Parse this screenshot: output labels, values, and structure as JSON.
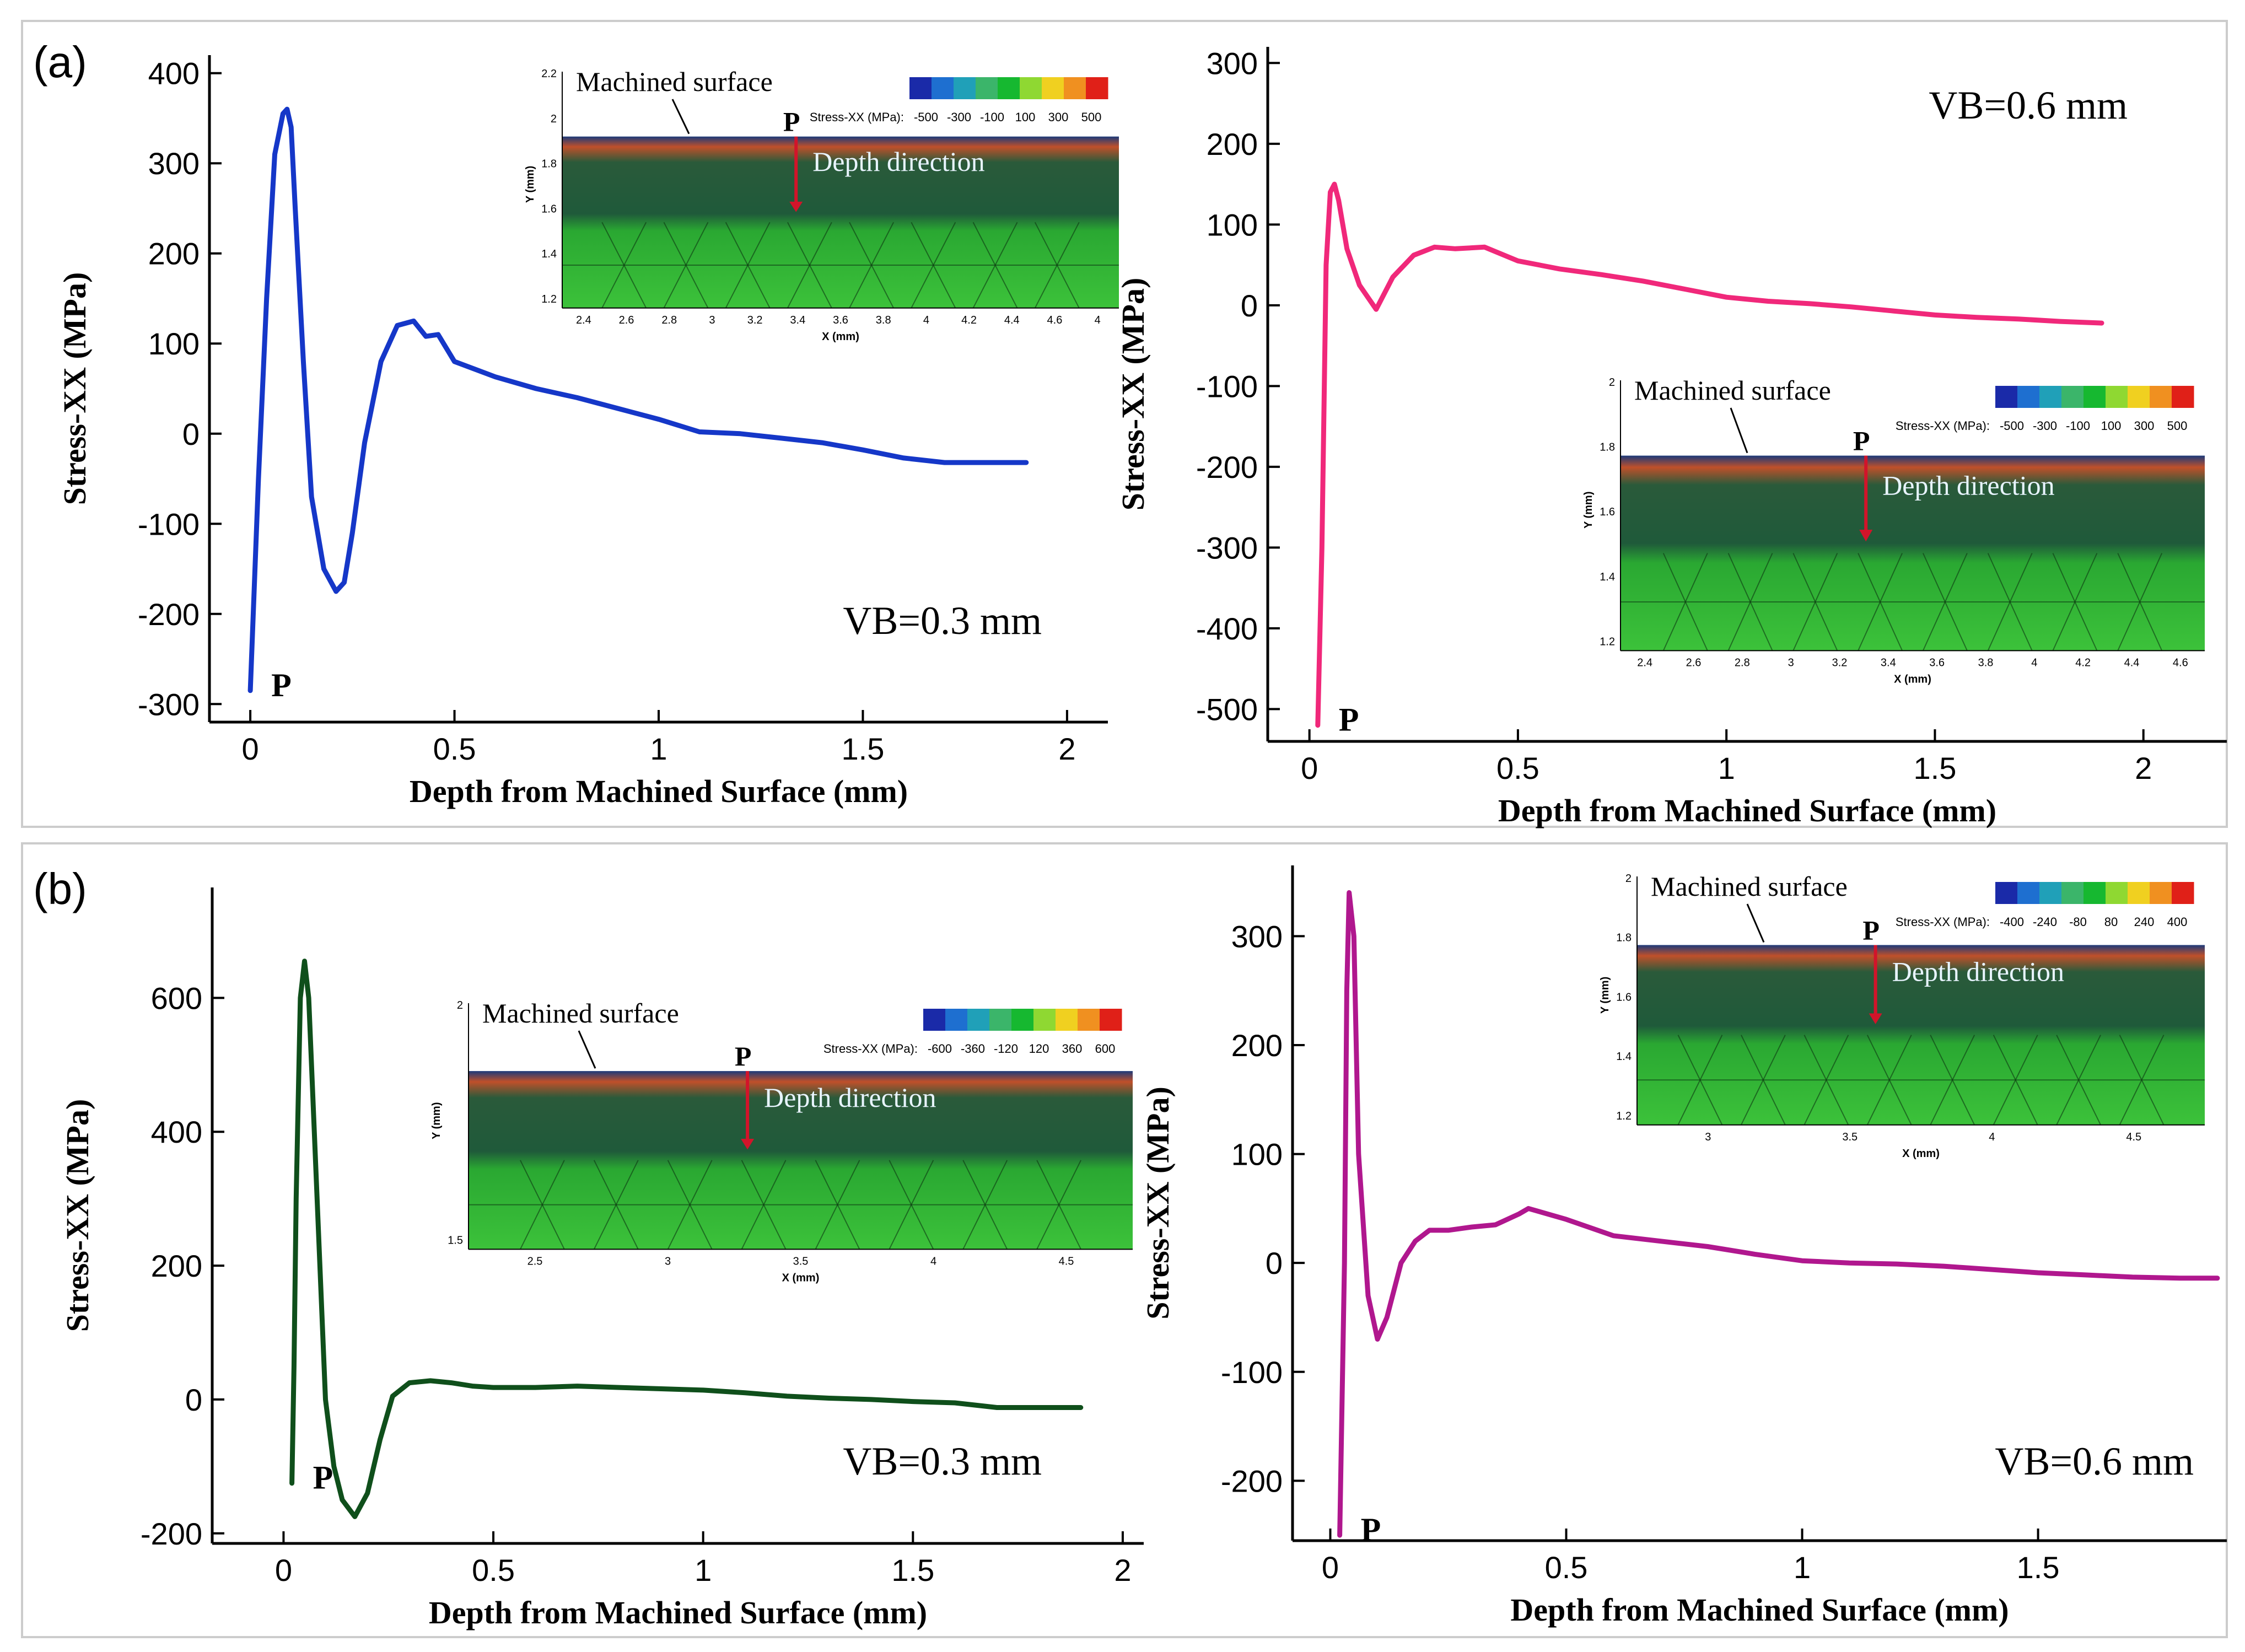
{
  "panels": [
    {
      "id": "a",
      "label": "(a)"
    },
    {
      "id": "b",
      "label": "(b)"
    }
  ],
  "chart_data": [
    {
      "type": "line",
      "panel": "a",
      "xlabel": "Depth from Machined Surface (mm)",
      "ylabel": "Stress-XX (MPa)",
      "xlim": [
        -0.1,
        2.1
      ],
      "ylim": [
        -320,
        420
      ],
      "xticks": [
        0,
        0.5,
        1,
        1.5,
        2
      ],
      "yticks": [
        -300,
        -200,
        -100,
        0,
        100,
        200,
        300,
        400
      ],
      "annotation": "VB=0.3 mm",
      "point_label": "P",
      "color": "#1537c8",
      "series": [
        {
          "x": [
            0,
            0.02,
            0.04,
            0.06,
            0.08,
            0.09,
            0.1,
            0.11,
            0.13,
            0.15,
            0.18,
            0.21,
            0.23,
            0.25,
            0.28,
            0.32,
            0.36,
            0.4,
            0.43,
            0.46,
            0.48,
            0.5,
            0.6,
            0.7,
            0.8,
            0.9,
            1.0,
            1.1,
            1.2,
            1.3,
            1.4,
            1.5,
            1.6,
            1.7,
            1.8,
            1.9
          ],
          "y": [
            -285,
            -50,
            150,
            310,
            355,
            360,
            340,
            250,
            80,
            -70,
            -150,
            -175,
            -165,
            -110,
            -10,
            80,
            120,
            125,
            108,
            110,
            95,
            80,
            63,
            50,
            40,
            28,
            16,
            2,
            0,
            -5,
            -10,
            -18,
            -27,
            -32,
            -32,
            -32
          ]
        }
      ],
      "inset": {
        "title": "Machined surface",
        "point_label": "P",
        "depth_label": "Depth direction",
        "legend_title": "Stress-XX (MPa):",
        "legend_ticks": [
          "-500",
          "-300",
          "-100",
          "100",
          "300",
          "500"
        ],
        "xlabel": "X (mm)",
        "ylabel": "Y (mm)",
        "xticks": [
          "2.4",
          "2.6",
          "2.8",
          "3",
          "3.2",
          "3.4",
          "3.6",
          "3.8",
          "4",
          "4.2",
          "4.4",
          "4.6",
          "4"
        ],
        "yticks": [
          "2.2",
          "2",
          "1.8",
          "1.6",
          "1.4",
          "1.2"
        ]
      }
    },
    {
      "type": "line",
      "panel": "a",
      "xlabel": "Depth from Machined Surface (mm)",
      "ylabel": "Stress-XX (MPa)",
      "xlim": [
        -0.1,
        2.2
      ],
      "ylim": [
        -540,
        320
      ],
      "xticks": [
        0,
        0.5,
        1,
        1.5,
        2
      ],
      "yticks": [
        -500,
        -400,
        -300,
        -200,
        -100,
        0,
        100,
        200,
        300
      ],
      "annotation": "VB=0.6 mm",
      "point_label": "P",
      "color": "#f0287a",
      "series": [
        {
          "x": [
            0.02,
            0.03,
            0.04,
            0.05,
            0.06,
            0.07,
            0.09,
            0.12,
            0.16,
            0.2,
            0.25,
            0.3,
            0.35,
            0.42,
            0.5,
            0.6,
            0.7,
            0.8,
            0.9,
            1.0,
            1.1,
            1.2,
            1.3,
            1.4,
            1.5,
            1.6,
            1.7,
            1.8,
            1.9
          ],
          "y": [
            -520,
            -300,
            50,
            140,
            150,
            130,
            70,
            25,
            -5,
            35,
            62,
            72,
            70,
            72,
            55,
            45,
            38,
            30,
            20,
            10,
            5,
            2,
            -2,
            -7,
            -12,
            -15,
            -17,
            -20,
            -22
          ]
        }
      ],
      "inset": {
        "title": "Machined surface",
        "point_label": "P",
        "depth_label": "Depth direction",
        "legend_title": "Stress-XX (MPa):",
        "legend_ticks": [
          "-500",
          "-300",
          "-100",
          "100",
          "300",
          "500"
        ],
        "xlabel": "X (mm)",
        "ylabel": "Y (mm)",
        "xticks": [
          "2.4",
          "2.6",
          "2.8",
          "3",
          "3.2",
          "3.4",
          "3.6",
          "3.8",
          "4",
          "4.2",
          "4.4",
          "4.6"
        ],
        "yticks": [
          "2",
          "1.8",
          "1.6",
          "1.4",
          "1.2"
        ]
      }
    },
    {
      "type": "line",
      "panel": "b",
      "xlabel": "Depth from Machined Surface (mm)",
      "ylabel": "Stress-XX (MPa)",
      "xlim": [
        -0.17,
        2.05
      ],
      "ylim": [
        -215,
        765
      ],
      "xticks": [
        0,
        0.5,
        1,
        1.5,
        2
      ],
      "yticks": [
        -200,
        0,
        200,
        400,
        600
      ],
      "annotation": "VB=0.3 mm",
      "point_label": "P",
      "color": "#0f4f1b",
      "series": [
        {
          "x": [
            0.02,
            0.025,
            0.03,
            0.04,
            0.05,
            0.06,
            0.08,
            0.1,
            0.12,
            0.14,
            0.17,
            0.2,
            0.23,
            0.26,
            0.3,
            0.35,
            0.4,
            0.45,
            0.5,
            0.6,
            0.7,
            0.8,
            0.9,
            1.0,
            1.1,
            1.2,
            1.3,
            1.4,
            1.5,
            1.6,
            1.7,
            1.8,
            1.9
          ],
          "y": [
            -125,
            50,
            300,
            600,
            655,
            600,
            300,
            0,
            -100,
            -150,
            -175,
            -140,
            -60,
            5,
            25,
            28,
            25,
            20,
            18,
            18,
            20,
            18,
            16,
            14,
            10,
            5,
            2,
            0,
            -3,
            -5,
            -12,
            -12,
            -12
          ]
        }
      ],
      "inset": {
        "title": "Machined surface",
        "point_label": "P",
        "depth_label": "Depth direction",
        "legend_title": "Stress-XX (MPa):",
        "legend_ticks": [
          "-600",
          "-360",
          "-120",
          "120",
          "360",
          "600"
        ],
        "xlabel": "X (mm)",
        "ylabel": "Y (mm)",
        "xticks": [
          "2.5",
          "3",
          "3.5",
          "4",
          "4.5"
        ],
        "yticks": [
          "2",
          "1.5"
        ]
      }
    },
    {
      "type": "line",
      "panel": "b",
      "xlabel": "Depth from Machined Surface (mm)",
      "ylabel": "Stress-XX (MPa)",
      "xlim": [
        -0.08,
        1.9
      ],
      "ylim": [
        -255,
        365
      ],
      "xticks": [
        0,
        0.5,
        1,
        1.5
      ],
      "yticks": [
        -200,
        -100,
        0,
        100,
        200,
        300
      ],
      "annotation": "VB=0.6 mm",
      "point_label": "P",
      "color": "#b0178e",
      "series": [
        {
          "x": [
            0.02,
            0.03,
            0.035,
            0.04,
            0.05,
            0.06,
            0.08,
            0.1,
            0.12,
            0.15,
            0.18,
            0.21,
            0.25,
            0.3,
            0.35,
            0.4,
            0.42,
            0.5,
            0.6,
            0.7,
            0.8,
            0.9,
            1.0,
            1.1,
            1.2,
            1.3,
            1.4,
            1.5,
            1.6,
            1.7,
            1.8,
            1.88
          ],
          "y": [
            -250,
            0,
            250,
            340,
            300,
            100,
            -30,
            -70,
            -50,
            0,
            20,
            30,
            30,
            33,
            35,
            45,
            50,
            40,
            25,
            20,
            15,
            8,
            2,
            0,
            -1,
            -3,
            -6,
            -9,
            -11,
            -13,
            -14,
            -14
          ]
        }
      ],
      "inset": {
        "title": "Machined surface",
        "point_label": "P",
        "depth_label": "Depth direction",
        "legend_title": "Stress-XX (MPa):",
        "legend_ticks": [
          "-400",
          "-240",
          "-80",
          "80",
          "240",
          "400"
        ],
        "xlabel": "X (mm)",
        "ylabel": "Y (mm)",
        "xticks": [
          "3",
          "3.5",
          "4",
          "4.5"
        ],
        "yticks": [
          "2",
          "1.8",
          "1.6",
          "1.4",
          "1.2"
        ]
      }
    }
  ]
}
